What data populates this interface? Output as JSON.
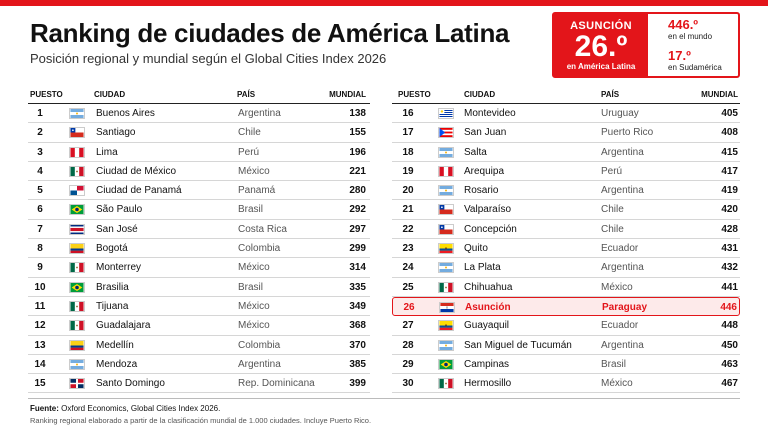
{
  "header": {
    "title": "Ranking de ciudades de América Latina",
    "subtitle": "Posición regional y mundial según el Global Cities Index 2026"
  },
  "callout": {
    "city": "ASUNCIÓN",
    "rank": "26.º",
    "rank_sub": "en América Latina",
    "world_value": "446.º",
    "world_label": "en el mundo",
    "sa_value": "17.º",
    "sa_label": "en Sudamérica"
  },
  "columns": {
    "pos": "PUESTO",
    "city": "CIUDAD",
    "country": "PAÍS",
    "world": "MUNDIAL"
  },
  "left_rows": [
    {
      "pos": "1",
      "city": "Buenos Aires",
      "country": "Argentina",
      "world": "138",
      "flag": "AR"
    },
    {
      "pos": "2",
      "city": "Santiago",
      "country": "Chile",
      "world": "155",
      "flag": "CL"
    },
    {
      "pos": "3",
      "city": "Lima",
      "country": "Perú",
      "world": "196",
      "flag": "PE"
    },
    {
      "pos": "4",
      "city": "Ciudad de México",
      "country": "México",
      "world": "221",
      "flag": "MX"
    },
    {
      "pos": "5",
      "city": "Ciudad de Panamá",
      "country": "Panamá",
      "world": "280",
      "flag": "PA"
    },
    {
      "pos": "6",
      "city": "São Paulo",
      "country": "Brasil",
      "world": "292",
      "flag": "BR"
    },
    {
      "pos": "7",
      "city": "San José",
      "country": "Costa Rica",
      "world": "297",
      "flag": "CR"
    },
    {
      "pos": "8",
      "city": "Bogotá",
      "country": "Colombia",
      "world": "299",
      "flag": "CO"
    },
    {
      "pos": "9",
      "city": "Monterrey",
      "country": "México",
      "world": "314",
      "flag": "MX"
    },
    {
      "pos": "10",
      "city": "Brasilia",
      "country": "Brasil",
      "world": "335",
      "flag": "BR"
    },
    {
      "pos": "11",
      "city": "Tijuana",
      "country": "México",
      "world": "349",
      "flag": "MX"
    },
    {
      "pos": "12",
      "city": "Guadalajara",
      "country": "México",
      "world": "368",
      "flag": "MX"
    },
    {
      "pos": "13",
      "city": "Medellín",
      "country": "Colombia",
      "world": "370",
      "flag": "CO"
    },
    {
      "pos": "14",
      "city": "Mendoza",
      "country": "Argentina",
      "world": "385",
      "flag": "AR"
    },
    {
      "pos": "15",
      "city": "Santo Domingo",
      "country": "Rep. Dominicana",
      "world": "399",
      "flag": "DO"
    }
  ],
  "right_rows": [
    {
      "pos": "16",
      "city": "Montevideo",
      "country": "Uruguay",
      "world": "405",
      "flag": "UY"
    },
    {
      "pos": "17",
      "city": "San Juan",
      "country": "Puerto Rico",
      "world": "408",
      "flag": "PR"
    },
    {
      "pos": "18",
      "city": "Salta",
      "country": "Argentina",
      "world": "415",
      "flag": "AR"
    },
    {
      "pos": "19",
      "city": "Arequipa",
      "country": "Perú",
      "world": "417",
      "flag": "PE"
    },
    {
      "pos": "20",
      "city": "Rosario",
      "country": "Argentina",
      "world": "419",
      "flag": "AR"
    },
    {
      "pos": "21",
      "city": "Valparaíso",
      "country": "Chile",
      "world": "420",
      "flag": "CL"
    },
    {
      "pos": "22",
      "city": "Concepción",
      "country": "Chile",
      "world": "428",
      "flag": "CL"
    },
    {
      "pos": "23",
      "city": "Quito",
      "country": "Ecuador",
      "world": "431",
      "flag": "EC"
    },
    {
      "pos": "24",
      "city": "La Plata",
      "country": "Argentina",
      "world": "432",
      "flag": "AR"
    },
    {
      "pos": "25",
      "city": "Chihuahua",
      "country": "México",
      "world": "441",
      "flag": "MX"
    },
    {
      "pos": "26",
      "city": "Asunción",
      "country": "Paraguay",
      "world": "446",
      "flag": "PY",
      "highlight": true
    },
    {
      "pos": "27",
      "city": "Guayaquil",
      "country": "Ecuador",
      "world": "448",
      "flag": "EC"
    },
    {
      "pos": "28",
      "city": "San Miguel de Tucumán",
      "country": "Argentina",
      "world": "450",
      "flag": "AR"
    },
    {
      "pos": "29",
      "city": "Campinas",
      "country": "Brasil",
      "world": "463",
      "flag": "BR"
    },
    {
      "pos": "30",
      "city": "Hermosillo",
      "country": "México",
      "world": "467",
      "flag": "MX"
    }
  ],
  "footer": {
    "source_label": "Fuente:",
    "source_text": "Oxford Economics, Global Cities Index 2026.",
    "note": "Ranking regional elaborado a partir de la clasificación mundial de 1.000 ciudades. Incluye Puerto Rico."
  },
  "colors": {
    "accent": "#e3151a",
    "highlight_bg": "#fdeaea"
  }
}
